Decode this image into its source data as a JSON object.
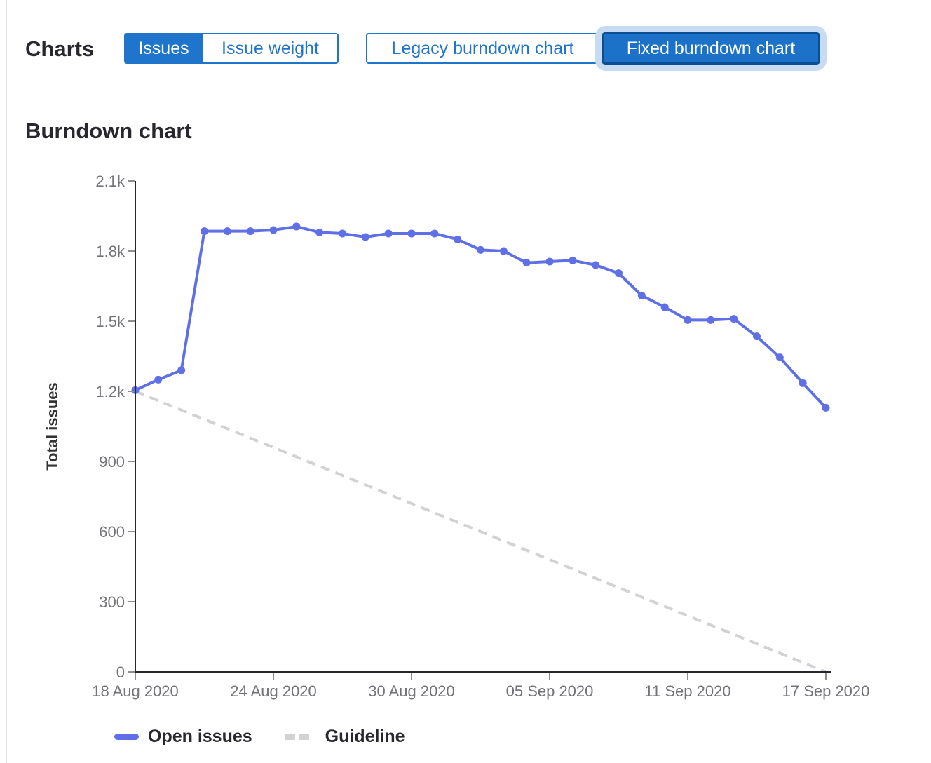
{
  "toolbar": {
    "charts_label": "Charts",
    "metric_toggle": {
      "options": [
        {
          "label": "Issues",
          "selected": true
        },
        {
          "label": "Issue weight",
          "selected": false
        }
      ]
    },
    "chart_type_toggle": {
      "options": [
        {
          "label": "Legacy burndown chart",
          "selected": false
        },
        {
          "label": "Fixed burndown chart",
          "selected": true,
          "focused": true
        }
      ]
    }
  },
  "section": {
    "title": "Burndown chart"
  },
  "colors": {
    "button_blue": "#1f75cb",
    "selected_button_fill": "#1b72c8",
    "selected_button_border": "#0d4e92",
    "focus_ring": "#c7dcf2",
    "open_issues_line": "#5f70e7",
    "guideline_gray": "#d2d2d2",
    "axis_line": "#28272d",
    "tick_mark": "#8f8f8f",
    "axis_text": "#737278",
    "heading_text": "#28272d",
    "page_left_border": "#e4e3e8"
  },
  "chart_data": {
    "type": "line",
    "title": "Burndown chart",
    "xlabel": "",
    "ylabel": "Total issues",
    "ylim": [
      0,
      2100
    ],
    "grid": false,
    "y_tick_values": [
      0,
      300,
      600,
      900,
      1200,
      1500,
      1800,
      2100
    ],
    "y_tick_labels": [
      "0",
      "300",
      "600",
      "900",
      "1.2k",
      "1.5k",
      "1.8k",
      "2.1k"
    ],
    "x_tick_day_indexes": [
      0,
      6,
      12,
      18,
      24,
      30
    ],
    "x_tick_labels": [
      "18 Aug 2020",
      "24 Aug 2020",
      "30 Aug 2020",
      "05 Sep 2020",
      "11 Sep 2020",
      "17 Sep 2020"
    ],
    "x": [
      "18 Aug 2020",
      "19 Aug 2020",
      "20 Aug 2020",
      "21 Aug 2020",
      "22 Aug 2020",
      "23 Aug 2020",
      "24 Aug 2020",
      "25 Aug 2020",
      "26 Aug 2020",
      "27 Aug 2020",
      "28 Aug 2020",
      "29 Aug 2020",
      "30 Aug 2020",
      "31 Aug 2020",
      "01 Sep 2020",
      "02 Sep 2020",
      "03 Sep 2020",
      "04 Sep 2020",
      "05 Sep 2020",
      "06 Sep 2020",
      "07 Sep 2020",
      "08 Sep 2020",
      "09 Sep 2020",
      "10 Sep 2020",
      "11 Sep 2020",
      "12 Sep 2020",
      "13 Sep 2020",
      "14 Sep 2020",
      "15 Sep 2020",
      "16 Sep 2020",
      "17 Sep 2020"
    ],
    "series": [
      {
        "name": "Open issues",
        "style": "solid",
        "markers": true,
        "color": "#5f70e7",
        "values": [
          1205,
          1250,
          1290,
          1885,
          1885,
          1885,
          1890,
          1905,
          1880,
          1875,
          1860,
          1875,
          1875,
          1875,
          1850,
          1805,
          1800,
          1750,
          1755,
          1760,
          1740,
          1705,
          1610,
          1560,
          1505,
          1505,
          1510,
          1435,
          1345,
          1235,
          1130
        ]
      },
      {
        "name": "Guideline",
        "style": "dashed",
        "markers": false,
        "color": "#d2d2d2",
        "x_span": [
          "18 Aug 2020",
          "17 Sep 2020"
        ],
        "values": [
          1200,
          0
        ]
      }
    ],
    "legend": {
      "position": "bottom",
      "entries": [
        "Open issues",
        "Guideline"
      ]
    }
  }
}
